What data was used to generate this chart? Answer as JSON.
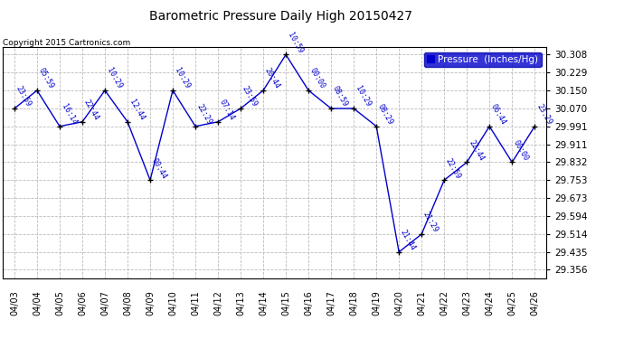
{
  "title": "Barometric Pressure Daily High 20150427",
  "copyright": "Copyright 2015 Cartronics.com",
  "legend_label": "Pressure  (Inches/Hg)",
  "line_color": "#0000cc",
  "marker_color": "#000000",
  "background_color": "#ffffff",
  "grid_color": "#aaaaaa",
  "text_color": "#0000cc",
  "points": [
    {
      "date": "04/03",
      "time": "23:59",
      "value": 30.07
    },
    {
      "date": "04/04",
      "time": "05:59",
      "value": 30.15
    },
    {
      "date": "04/05",
      "time": "16:14",
      "value": 29.991
    },
    {
      "date": "04/06",
      "time": "22:44",
      "value": 30.011
    },
    {
      "date": "04/07",
      "time": "10:29",
      "value": 30.15
    },
    {
      "date": "04/08",
      "time": "12:44",
      "value": 30.011
    },
    {
      "date": "04/09",
      "time": "00:44",
      "value": 29.753
    },
    {
      "date": "04/10",
      "time": "10:29",
      "value": 30.15
    },
    {
      "date": "04/11",
      "time": "22:29",
      "value": 29.991
    },
    {
      "date": "04/12",
      "time": "07:14",
      "value": 30.011
    },
    {
      "date": "04/13",
      "time": "23:59",
      "value": 30.07
    },
    {
      "date": "04/14",
      "time": "20:44",
      "value": 30.15
    },
    {
      "date": "04/15",
      "time": "10:59",
      "value": 30.308
    },
    {
      "date": "04/16",
      "time": "00:00",
      "value": 30.15
    },
    {
      "date": "04/17",
      "time": "08:59",
      "value": 30.07
    },
    {
      "date": "04/18",
      "time": "10:29",
      "value": 30.07
    },
    {
      "date": "04/19",
      "time": "08:29",
      "value": 29.991
    },
    {
      "date": "04/20",
      "time": "21:44",
      "value": 29.435
    },
    {
      "date": "04/21",
      "time": "21:29",
      "value": 29.514
    },
    {
      "date": "04/22",
      "time": "22:59",
      "value": 29.753
    },
    {
      "date": "04/23",
      "time": "22:44",
      "value": 29.832
    },
    {
      "date": "04/24",
      "time": "06:44",
      "value": 29.991
    },
    {
      "date": "04/25",
      "time": "00:00",
      "value": 29.832
    },
    {
      "date": "04/26",
      "time": "23:29",
      "value": 29.991
    }
  ],
  "ylim": [
    29.32,
    30.34
  ],
  "yticks": [
    29.356,
    29.435,
    29.514,
    29.594,
    29.673,
    29.753,
    29.832,
    29.911,
    29.991,
    30.07,
    30.15,
    30.229,
    30.308
  ]
}
